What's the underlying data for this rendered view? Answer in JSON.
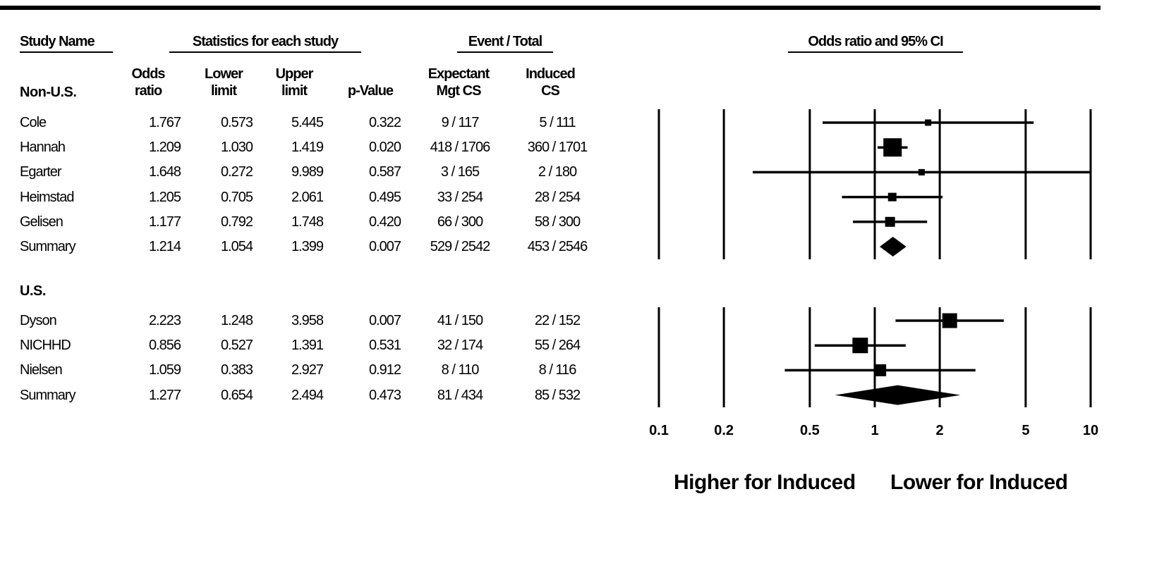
{
  "headers": {
    "study_name": "Study Name",
    "statistics": "Statistics for each study",
    "event_total": "Event / Total",
    "odds_ratio_ci": "Odds ratio and 95% CI",
    "odds_ratio": [
      "Odds",
      "ratio"
    ],
    "lower_limit": [
      "Lower",
      "limit"
    ],
    "upper_limit": [
      "Upper",
      "limit"
    ],
    "p_value": "p-Value",
    "expectant": [
      "Expectant",
      "Mgt CS"
    ],
    "induced": [
      "Induced",
      "CS"
    ]
  },
  "footer": {
    "left": "Higher for Induced",
    "right": "Lower for Induced"
  },
  "chart_data": {
    "type": "table",
    "scale": "log",
    "xlim": [
      0.1,
      10
    ],
    "x_ticks": [
      {
        "value": 0.1,
        "label": "0.1"
      },
      {
        "value": 0.2,
        "label": "0.2"
      },
      {
        "value": 0.5,
        "label": "0.5"
      },
      {
        "value": 1,
        "label": "1"
      },
      {
        "value": 2,
        "label": "2"
      },
      {
        "value": 5,
        "label": "5"
      },
      {
        "value": 10,
        "label": "10"
      }
    ],
    "groups": [
      {
        "name": "Non-U.S.",
        "studies": [
          {
            "name": "Cole",
            "or": "1.767",
            "lower": "0.573",
            "upper": "5.445",
            "p": "0.322",
            "expectant": "9 / 117",
            "induced": "5 / 111",
            "weight": 0.15
          },
          {
            "name": "Hannah",
            "or": "1.209",
            "lower": "1.030",
            "upper": "1.419",
            "p": "0.020",
            "expectant": "418 / 1706",
            "induced": "360 / 1701",
            "weight": 1.0
          },
          {
            "name": "Egarter",
            "or": "1.648",
            "lower": "0.272",
            "upper": "9.989",
            "p": "0.587",
            "expectant": "3 / 165",
            "induced": "2 / 180",
            "weight": 0.15
          },
          {
            "name": "Heimstad",
            "or": "1.205",
            "lower": "0.705",
            "upper": "2.061",
            "p": "0.495",
            "expectant": "33 / 254",
            "induced": "28 / 254",
            "weight": 0.3
          },
          {
            "name": "Gelisen",
            "or": "1.177",
            "lower": "0.792",
            "upper": "1.748",
            "p": "0.420",
            "expectant": "66 / 300",
            "induced": "58 / 300",
            "weight": 0.4
          }
        ],
        "summary": {
          "name": "Summary",
          "or": "1.214",
          "lower": "1.054",
          "upper": "1.399",
          "p": "0.007",
          "expectant": "529 / 2542",
          "induced": "453 / 2546"
        }
      },
      {
        "name": "U.S.",
        "studies": [
          {
            "name": "Dyson",
            "or": "2.223",
            "lower": "1.248",
            "upper": "3.958",
            "p": "0.007",
            "expectant": "41 / 150",
            "induced": "22 / 152",
            "weight": 0.75
          },
          {
            "name": "NICHHD",
            "or": "0.856",
            "lower": "0.527",
            "upper": "1.391",
            "p": "0.531",
            "expectant": "32 / 174",
            "induced": "55 / 264",
            "weight": 0.8
          },
          {
            "name": "Nielsen",
            "or": "1.059",
            "lower": "0.383",
            "upper": "2.927",
            "p": "0.912",
            "expectant": "8 / 110",
            "induced": "8 / 116",
            "weight": 0.55
          }
        ],
        "summary": {
          "name": "Summary",
          "or": "1.277",
          "lower": "0.654",
          "upper": "2.494",
          "p": "0.473",
          "expectant": "81 / 434",
          "induced": "85 / 532"
        }
      }
    ]
  }
}
